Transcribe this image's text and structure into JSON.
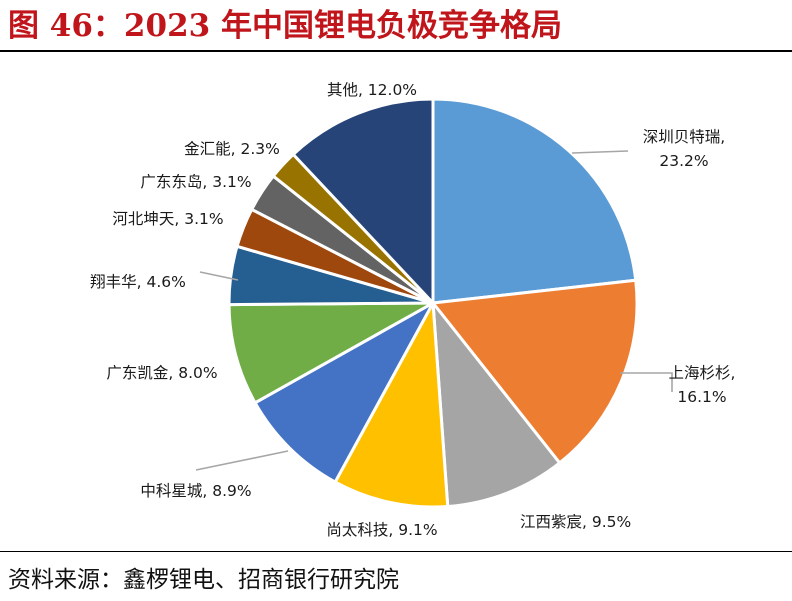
{
  "header": {
    "title": "图 46：2023 年中国锂电负极竞争格局"
  },
  "footer": {
    "source": "资料来源：鑫椤锂电、招商银行研究院"
  },
  "chart_data": {
    "type": "pie",
    "title": "",
    "start": "12 o'clock, clockwise",
    "slices": [
      {
        "label": "深圳贝特瑞",
        "value": 23.2,
        "display": "23.2%",
        "color": "#5b9bd5"
      },
      {
        "label": "上海杉杉",
        "value": 16.1,
        "display": "16.1%",
        "color": "#ed7d31"
      },
      {
        "label": "江西紫宸",
        "value": 9.5,
        "display": "9.5%",
        "color": "#a5a5a5"
      },
      {
        "label": "尚太科技",
        "value": 9.1,
        "display": "9.1%",
        "color": "#ffc000"
      },
      {
        "label": "中科星城",
        "value": 8.9,
        "display": "8.9%",
        "color": "#4472c4"
      },
      {
        "label": "广东凯金",
        "value": 8.0,
        "display": "8.0%",
        "color": "#70ad47"
      },
      {
        "label": "翔丰华",
        "value": 4.6,
        "display": "4.6%",
        "color": "#255e91"
      },
      {
        "label": "河北坤天",
        "value": 3.1,
        "display": "3.1%",
        "color": "#9e480e"
      },
      {
        "label": "广东东岛",
        "value": 3.1,
        "display": "3.1%",
        "color": "#636363"
      },
      {
        "label": "金汇能",
        "value": 2.3,
        "display": "2.3%",
        "color": "#997300"
      },
      {
        "label": "其他",
        "value": 12.0,
        "display": "12.0%",
        "color": "#264478"
      }
    ]
  }
}
